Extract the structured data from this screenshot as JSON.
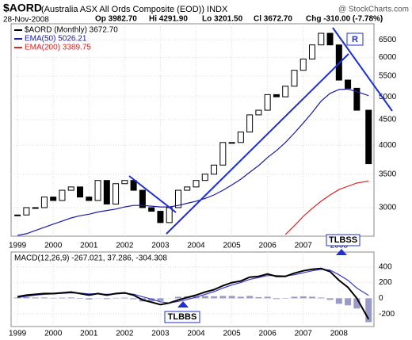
{
  "header": {
    "symbol": "$AORD",
    "name": "(Australia ASX All Ords Composite (EOD)) INDX",
    "source": "@ StockCharts.com",
    "date": "28-Nov-2008",
    "open": "Op 3982.70",
    "high": "Hi 4291.90",
    "low": "Lo 3201.50",
    "close": "Cl 3672.70",
    "change": "Chg -310.00 (-7.78%)"
  },
  "chart_data": [
    {
      "type": "candlestick",
      "x": [
        1999,
        1999.25,
        1999.5,
        1999.75,
        2000,
        2000.25,
        2000.5,
        2000.75,
        2001,
        2001.25,
        2001.5,
        2001.75,
        2002,
        2002.25,
        2002.5,
        2002.75,
        2003,
        2003.25,
        2003.5,
        2003.75,
        2004,
        2004.25,
        2004.5,
        2004.75,
        2005,
        2005.25,
        2005.5,
        2005.75,
        2006,
        2006.25,
        2006.5,
        2006.75,
        2007,
        2007.25,
        2007.5,
        2007.75,
        2008,
        2008.25,
        2008.5,
        2008.83
      ],
      "series": [
        {
          "name": "$AORD (Monthly) 3672.70",
          "color": "#000000",
          "values": [
            2900,
            3000,
            3000,
            3150,
            3100,
            3250,
            3300,
            3150,
            3100,
            3400,
            3050,
            3350,
            3400,
            3250,
            3000,
            2950,
            2800,
            3000,
            3250,
            3300,
            3400,
            3500,
            3650,
            4050,
            4050,
            4250,
            4600,
            4700,
            5050,
            5000,
            5250,
            5650,
            5950,
            6350,
            6700,
            6350,
            5400,
            5200,
            4700,
            3672.7
          ]
        },
        {
          "name": "EMA(50) 5026.21",
          "color": "#1a1aa6",
          "values": [
            2640,
            2660,
            2700,
            2740,
            2780,
            2820,
            2860,
            2890,
            2910,
            2940,
            2960,
            2980,
            3010,
            3030,
            3030,
            3020,
            3010,
            3010,
            3030,
            3060,
            3090,
            3130,
            3180,
            3250,
            3330,
            3420,
            3530,
            3640,
            3780,
            3900,
            4050,
            4230,
            4430,
            4650,
            4900,
            5080,
            5170,
            5180,
            5120,
            5026.21
          ]
        },
        {
          "name": "EMA(200) 3389.75",
          "color": "#e02020",
          "values": [
            null,
            null,
            null,
            null,
            null,
            null,
            null,
            null,
            null,
            null,
            null,
            null,
            null,
            null,
            null,
            null,
            null,
            null,
            null,
            null,
            null,
            null,
            null,
            null,
            null,
            null,
            null,
            null,
            null,
            null,
            2650,
            2760,
            2880,
            2990,
            3090,
            3180,
            3260,
            3310,
            3360,
            3389.75
          ]
        }
      ],
      "xlim": [
        1998.82,
        2008.98
      ],
      "xticks": [
        1999,
        2000,
        2001,
        2002,
        2003,
        2004,
        2005,
        2006,
        2007,
        2008
      ],
      "ylim": [
        2630,
        7000
      ],
      "yticks": [
        3000,
        3500,
        4000,
        4500,
        5000,
        5500,
        6000,
        6500
      ],
      "log_scale": true,
      "grid": true,
      "annotations": [
        "R"
      ]
    },
    {
      "type": "macd",
      "title": "MACD(12,26,9) -267.021, 37.286, -304.308",
      "x": [
        1999,
        1999.25,
        1999.5,
        1999.75,
        2000,
        2000.25,
        2000.5,
        2000.75,
        2001,
        2001.25,
        2001.5,
        2001.75,
        2002,
        2002.25,
        2002.5,
        2002.75,
        2003,
        2003.25,
        2003.5,
        2003.75,
        2004,
        2004.25,
        2004.5,
        2004.75,
        2005,
        2005.25,
        2005.5,
        2005.75,
        2006,
        2006.25,
        2006.5,
        2006.75,
        2007,
        2007.25,
        2007.5,
        2007.75,
        2008,
        2008.25,
        2008.5,
        2008.83
      ],
      "series": [
        {
          "name": "MACD",
          "color": "#000000",
          "values": [
            20,
            40,
            50,
            60,
            60,
            70,
            80,
            60,
            40,
            60,
            40,
            60,
            70,
            40,
            -20,
            -50,
            -80,
            -60,
            -20,
            10,
            40,
            80,
            110,
            160,
            200,
            220,
            270,
            280,
            310,
            280,
            280,
            320,
            350,
            370,
            380,
            340,
            230,
            140,
            0,
            -267.021
          ]
        },
        {
          "name": "Signal",
          "color": "#3a3ad0",
          "values": [
            10,
            25,
            40,
            50,
            55,
            62,
            70,
            66,
            55,
            58,
            50,
            55,
            62,
            52,
            20,
            -10,
            -45,
            -60,
            -40,
            -15,
            15,
            50,
            85,
            130,
            170,
            200,
            240,
            265,
            290,
            290,
            285,
            300,
            325,
            350,
            370,
            360,
            300,
            230,
            130,
            37.286
          ]
        },
        {
          "name": "Histogram",
          "color": "#9a9ac8",
          "values": [
            10,
            15,
            10,
            10,
            5,
            8,
            10,
            -6,
            -15,
            2,
            -10,
            5,
            8,
            -12,
            -40,
            -40,
            -35,
            0,
            20,
            25,
            25,
            30,
            25,
            30,
            30,
            20,
            30,
            15,
            20,
            -10,
            -5,
            20,
            25,
            20,
            10,
            -20,
            -70,
            -90,
            -130,
            -304.308
          ]
        }
      ],
      "xlim": [
        1998.82,
        2008.98
      ],
      "xticks": [
        1999,
        2000,
        2001,
        2002,
        2003,
        2004,
        2005,
        2006,
        2007,
        2008
      ],
      "ylim": [
        -360,
        590
      ],
      "yticks": [
        400,
        200,
        0,
        -200
      ],
      "grid": true,
      "annotations": [
        "TLBSS",
        "TLBBS"
      ]
    }
  ]
}
